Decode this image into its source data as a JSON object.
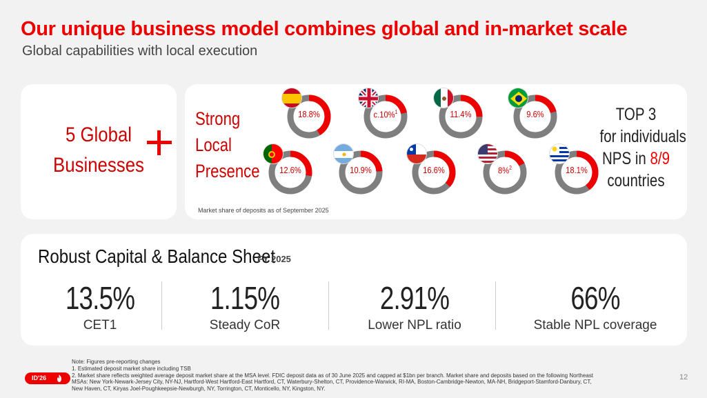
{
  "title": "Our unique business model combines global and in-market scale",
  "subtitle": "Global capabilities with local execution",
  "global": {
    "line1": "5 Global",
    "line2": "Businesses"
  },
  "local": {
    "line1": "Strong",
    "line2": "Local",
    "line3": "Presence"
  },
  "countries": [
    {
      "flag": "spain-flag",
      "value": "18.8%",
      "sup": "",
      "share": 0.188
    },
    {
      "flag": "uk-flag",
      "value": "c.10%",
      "sup": "1",
      "share": 0.1
    },
    {
      "flag": "mexico-flag",
      "value": "11.4%",
      "sup": "",
      "share": 0.114
    },
    {
      "flag": "brazil-flag",
      "value": "9.6%",
      "sup": "",
      "share": 0.096
    },
    {
      "flag": "portugal-flag",
      "value": "12.6%",
      "sup": "",
      "share": 0.126
    },
    {
      "flag": "argentina-flag",
      "value": "10.9%",
      "sup": "",
      "share": 0.109
    },
    {
      "flag": "chile-flag",
      "value": "16.6%",
      "sup": "",
      "share": 0.166
    },
    {
      "flag": "usa-flag",
      "value": "8%",
      "sup": "2",
      "share": 0.08
    },
    {
      "flag": "uruguay-flag",
      "value": "18.1%",
      "sup": "",
      "share": 0.181
    }
  ],
  "nps": {
    "line1": "TOP 3",
    "line2": "for individuals",
    "line3_prefix": "NPS in ",
    "line3_accent": "8/9",
    "line4": "countries"
  },
  "market_note": "Market share of deposits as of September 2025",
  "capital": {
    "title": "Robust Capital & Balance Sheet",
    "period": "FY 2025",
    "metrics": [
      {
        "value": "13.5%",
        "label": "CET1"
      },
      {
        "value": "1.15%",
        "label": "Steady CoR"
      },
      {
        "value": "2.91%",
        "label": "Lower NPL ratio"
      },
      {
        "value": "66%",
        "label": "Stable NPL coverage"
      }
    ]
  },
  "notes": {
    "line0": "Note: Figures pre-reporting changes",
    "line1": "1. Estimated deposit market share including TSB",
    "line2": "2. Market share reflects weighted average deposit market share at the MSA level. FDIC deposit data as of 30 June 2025 and capped at $1bn per branch. Market share and deposits based on the following Northeast MSAs: New York-Newark-Jersey City, NY-NJ, Hartford-West Hartford-East Hartford, CT, Waterbury-Shelton, CT, Providence-Warwick, RI-MA, Boston-Cambridge-Newton, MA-NH, Bridgeport-Stamford-Danbury, CT, New Haven, CT, Kiryas Joel-Poughkeepsie-Newburgh, NY, Torrington, CT, Monticello, NY, Kingston, NY."
  },
  "badge": "ID'26",
  "page_number": "12",
  "colors": {
    "accent": "#ec0000",
    "ring_grey": "#7f7f7f"
  }
}
